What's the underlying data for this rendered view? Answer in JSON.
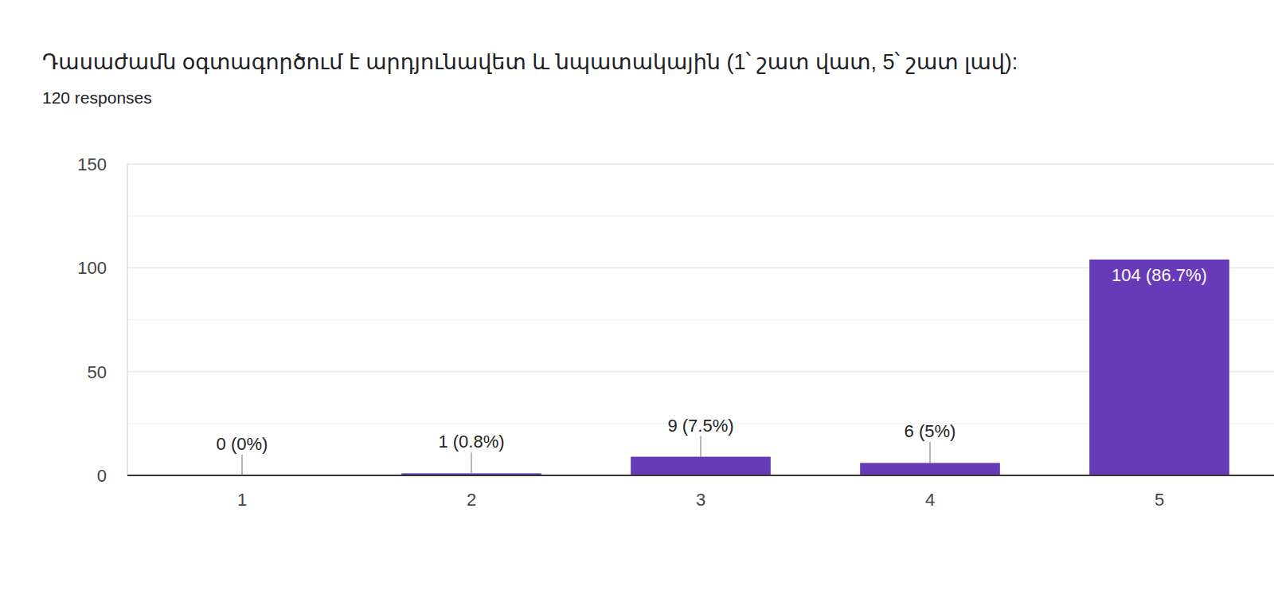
{
  "chart_data": {
    "type": "bar",
    "title": "Դասաժամն օգտագործում է արդյունավետ և նպատակային (1՝ շատ վատ, 5՝ շատ լավ):",
    "subtitle": "120 responses",
    "categories": [
      "1",
      "2",
      "3",
      "4",
      "5"
    ],
    "values": [
      0,
      1,
      9,
      6,
      104
    ],
    "value_labels": [
      "0 (0%)",
      "1 (0.8%)",
      "9 (7.5%)",
      "6 (5%)",
      "104 (86.7%)"
    ],
    "color": "#673ab7",
    "ylim": [
      0,
      150
    ],
    "yticks": [
      0,
      50,
      100,
      150
    ],
    "grid": true,
    "data_labels": true
  }
}
